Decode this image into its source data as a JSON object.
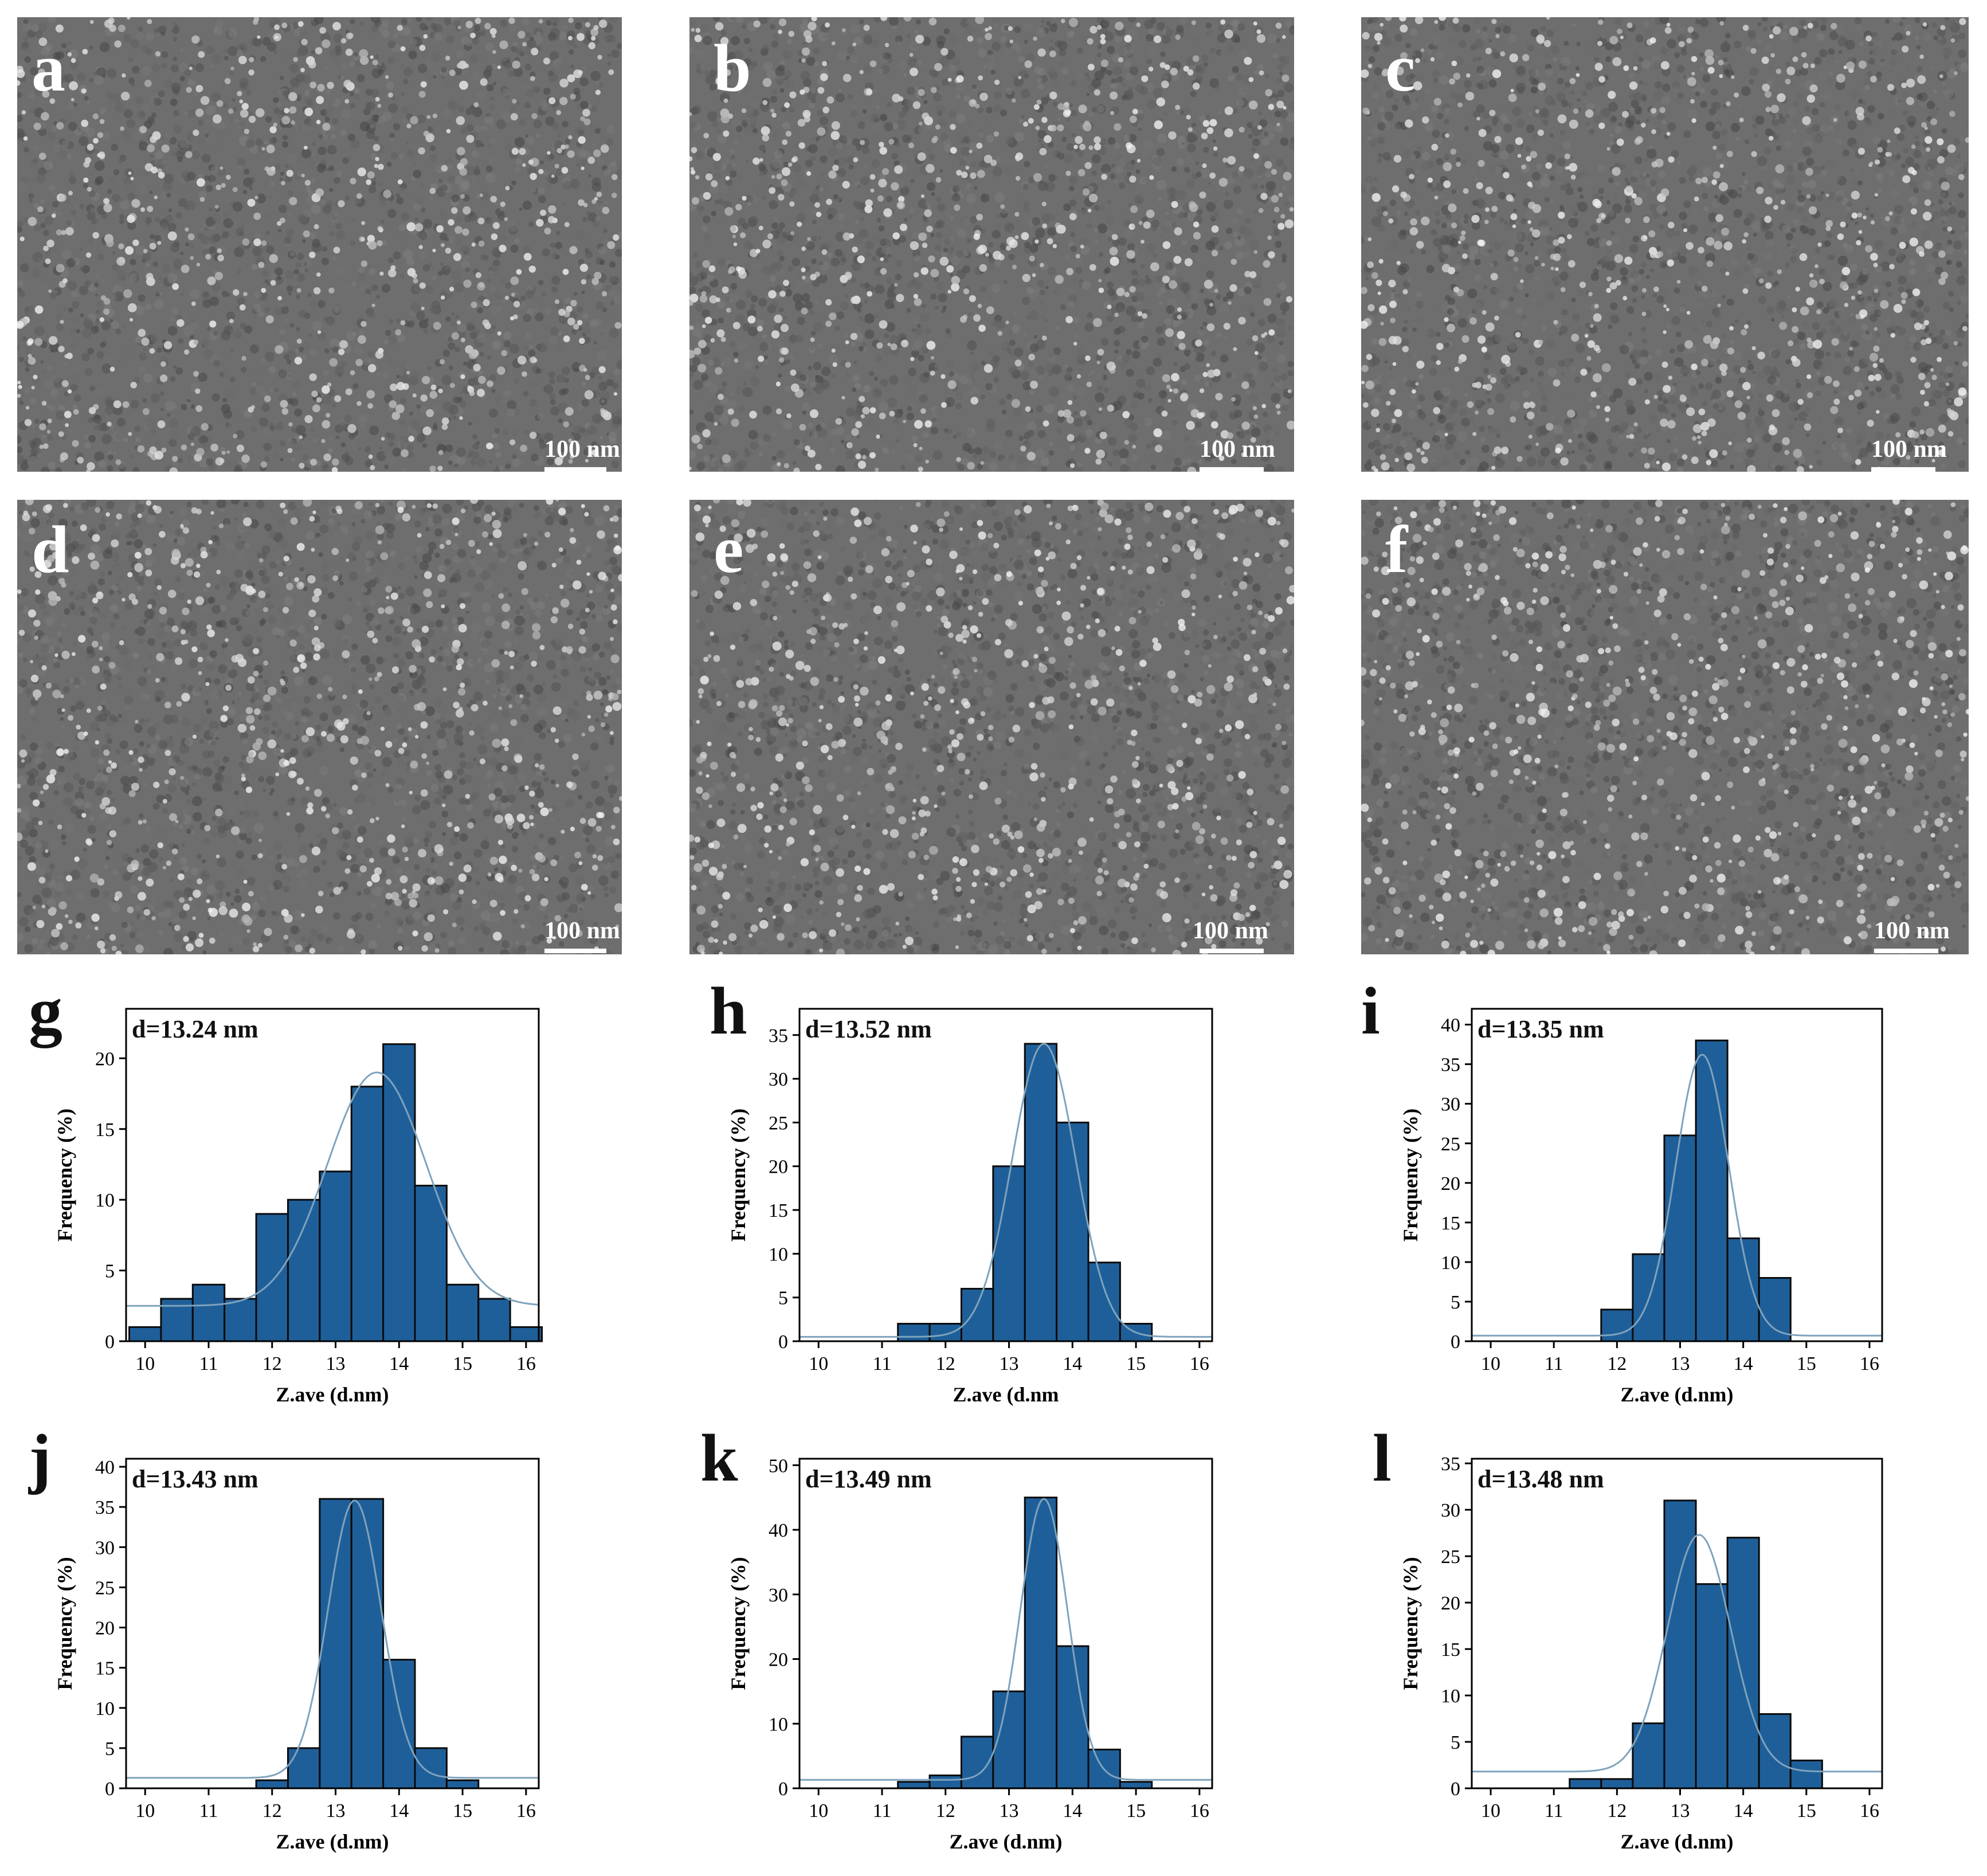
{
  "colors": {
    "bar_fill": "#1f5f99",
    "bar_edge": "#0a0a0a",
    "fit_line": "#7fa3bd",
    "sem_base": "#6e6e6e"
  },
  "sem_panels": [
    {
      "label": "a",
      "scale_text": "100 nm"
    },
    {
      "label": "b",
      "scale_text": "100 nm"
    },
    {
      "label": "c",
      "scale_text": "100 nm"
    },
    {
      "label": "d",
      "scale_text": "100 nm"
    },
    {
      "label": "e",
      "scale_text": "100 nm"
    },
    {
      "label": "f",
      "scale_text": "100 nm"
    }
  ],
  "chart_data": [
    {
      "type": "bar",
      "panel": "g",
      "annotation": "d=13.24 nm",
      "xlabel": "Z.ave (d.nm)",
      "ylabel": "Frequency (%)",
      "xlim": [
        9.7,
        16.2
      ],
      "ylim": [
        0,
        23.5
      ],
      "xticks": [
        10,
        11,
        12,
        13,
        14,
        15,
        16
      ],
      "yticks": [
        0,
        5,
        10,
        15,
        20
      ],
      "bin_width": 0.5,
      "bin_starts": [
        9.75,
        10.25,
        10.75,
        11.25,
        11.75,
        12.25,
        12.75,
        13.25,
        13.75,
        14.25,
        14.75,
        15.25,
        15.75
      ],
      "values": [
        1,
        3,
        4,
        3,
        9,
        10,
        12,
        18,
        21,
        11,
        4,
        3,
        1
      ],
      "fit": {
        "mean": 13.65,
        "sigma": 0.78,
        "amp": 16.5,
        "baseline": 2.5
      }
    },
    {
      "type": "bar",
      "panel": "h",
      "annotation": "d=13.52 nm",
      "xlabel": "Z.ave (d.nm",
      "ylabel": "Frequency (%)",
      "xlim": [
        9.7,
        16.2
      ],
      "ylim": [
        0,
        38
      ],
      "xticks": [
        10,
        11,
        12,
        13,
        14,
        15,
        16
      ],
      "yticks": [
        0,
        5,
        10,
        15,
        20,
        25,
        30,
        35
      ],
      "bin_width": 0.5,
      "bin_starts": [
        11.25,
        11.75,
        12.25,
        12.75,
        13.25,
        13.75,
        14.25,
        14.75
      ],
      "values": [
        2,
        2,
        6,
        20,
        34,
        25,
        9,
        2
      ],
      "fit": {
        "mean": 13.55,
        "sigma": 0.5,
        "amp": 33.5,
        "baseline": 0.5
      }
    },
    {
      "type": "bar",
      "panel": "i",
      "annotation": "d=13.35 nm",
      "xlabel": "Z.ave (d.nm)",
      "ylabel": "Frequency (%)",
      "xlim": [
        9.7,
        16.2
      ],
      "ylim": [
        0,
        42
      ],
      "xticks": [
        10,
        11,
        12,
        13,
        14,
        15,
        16
      ],
      "yticks": [
        0,
        5,
        10,
        15,
        20,
        25,
        30,
        35,
        40
      ],
      "bin_width": 0.5,
      "bin_starts": [
        11.75,
        12.25,
        12.75,
        13.25,
        13.75,
        14.25
      ],
      "values": [
        4,
        11,
        26,
        38,
        13,
        8
      ],
      "fit": {
        "mean": 13.35,
        "sigma": 0.42,
        "amp": 35.5,
        "baseline": 0.7
      }
    },
    {
      "type": "bar",
      "panel": "j",
      "annotation": "d=13.43 nm",
      "xlabel": "Z.ave (d.nm)",
      "ylabel": "Frequency (%)",
      "xlim": [
        9.7,
        16.2
      ],
      "ylim": [
        0,
        41
      ],
      "xticks": [
        10,
        11,
        12,
        13,
        14,
        15,
        16
      ],
      "yticks": [
        0,
        5,
        10,
        15,
        20,
        25,
        30,
        35,
        40
      ],
      "bin_width": 0.5,
      "bin_starts": [
        11.75,
        12.25,
        12.75,
        13.25,
        13.75,
        14.25,
        14.75
      ],
      "values": [
        1,
        5,
        36,
        36,
        16,
        5,
        1
      ],
      "fit": {
        "mean": 13.3,
        "sigma": 0.42,
        "amp": 34.5,
        "baseline": 1.3
      }
    },
    {
      "type": "bar",
      "panel": "k",
      "annotation": "d=13.49 nm",
      "xlabel": "Z.ave (d.nm)",
      "ylabel": "Frequency (%)",
      "xlim": [
        9.7,
        16.2
      ],
      "ylim": [
        0,
        51
      ],
      "xticks": [
        10,
        11,
        12,
        13,
        14,
        15,
        16
      ],
      "yticks": [
        0,
        10,
        20,
        30,
        40,
        50
      ],
      "bin_width": 0.5,
      "bin_starts": [
        11.25,
        11.75,
        12.25,
        12.75,
        13.25,
        13.75,
        14.25,
        14.75
      ],
      "values": [
        1,
        2,
        8,
        15,
        45,
        22,
        6,
        1
      ],
      "fit": {
        "mean": 13.55,
        "sigma": 0.37,
        "amp": 43.5,
        "baseline": 1.3
      }
    },
    {
      "type": "bar",
      "panel": "l",
      "annotation": "d=13.48 nm",
      "xlabel": "Z.ave (d.nm)",
      "ylabel": "Frequency (%)",
      "xlim": [
        9.7,
        16.2
      ],
      "ylim": [
        0,
        35.5
      ],
      "xticks": [
        10,
        11,
        12,
        13,
        14,
        15,
        16
      ],
      "yticks": [
        0,
        5,
        10,
        15,
        20,
        25,
        30,
        35
      ],
      "bin_width": 0.5,
      "bin_starts": [
        11.25,
        11.75,
        12.25,
        12.75,
        13.25,
        13.75,
        14.25,
        14.75
      ],
      "values": [
        1,
        1,
        7,
        31,
        22,
        27,
        8,
        3
      ],
      "fit": {
        "mean": 13.3,
        "sigma": 0.5,
        "amp": 25.5,
        "baseline": 1.8
      }
    }
  ]
}
